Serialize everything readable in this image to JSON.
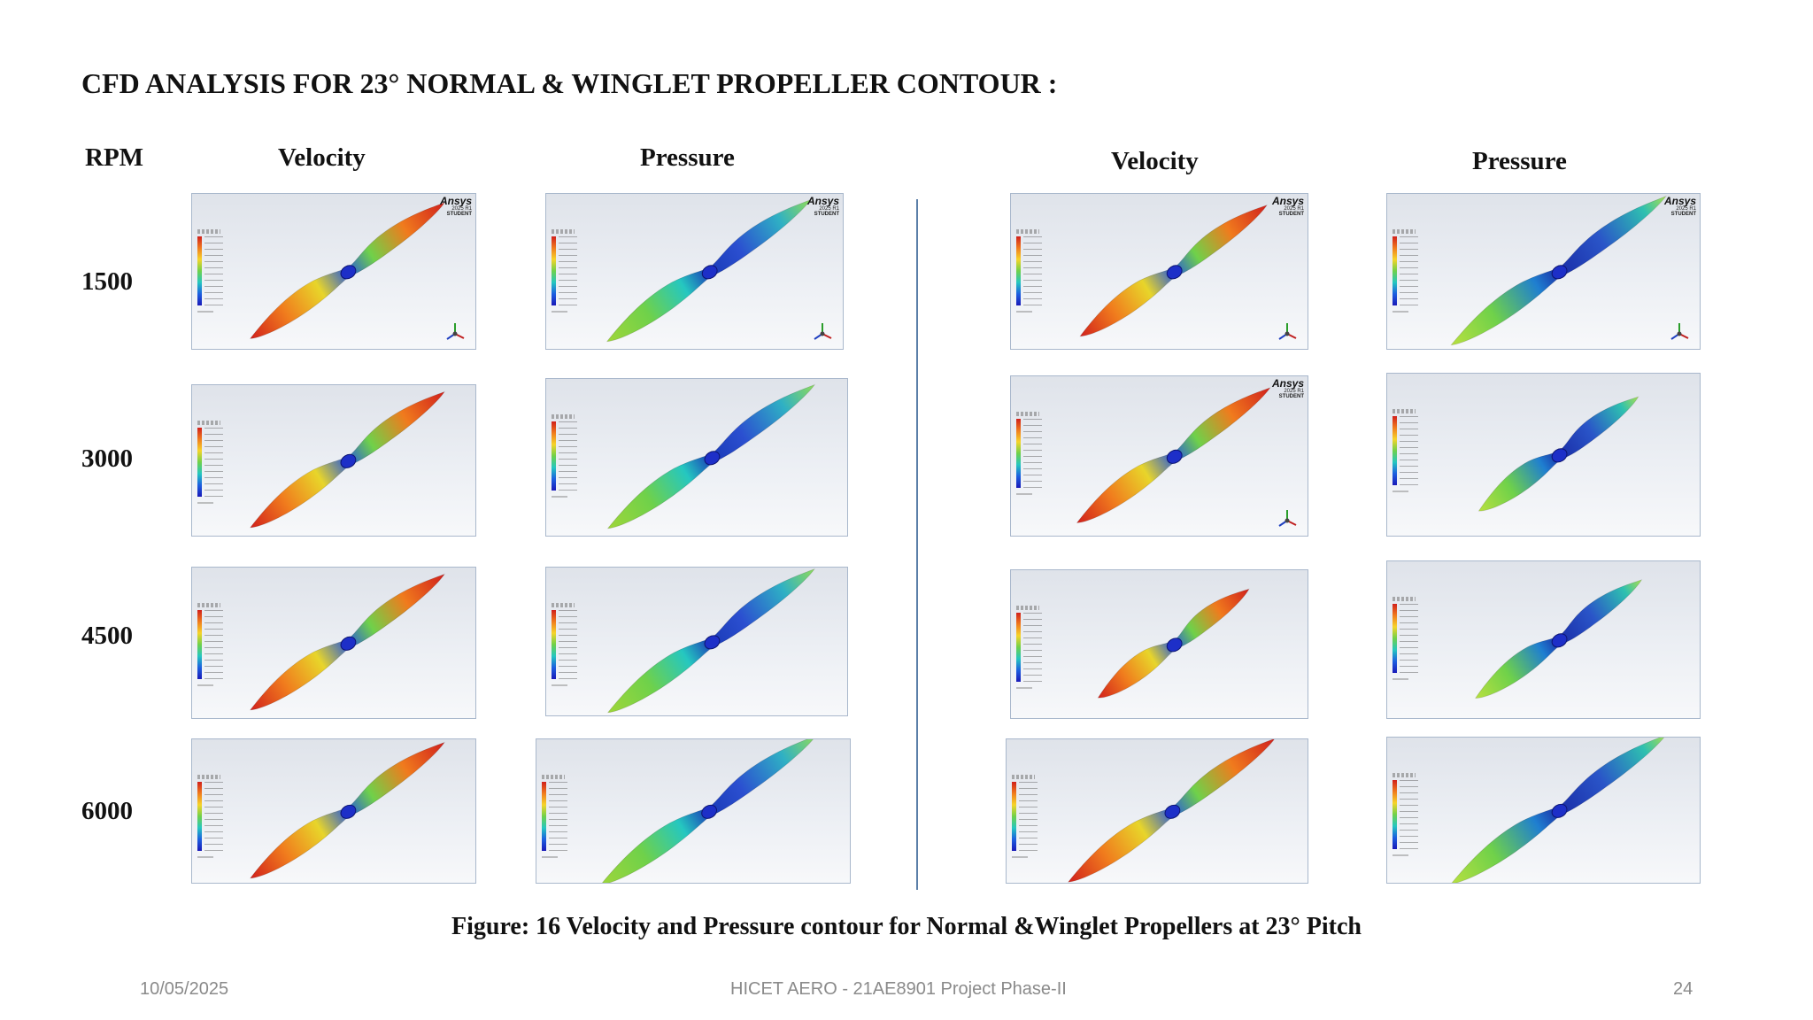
{
  "title": "CFD ANALYSIS FOR 23° NORMAL & WINGLET PROPELLER CONTOUR :",
  "columns": {
    "rpm": "RPM",
    "normal_velocity": "Velocity",
    "normal_pressure": "Pressure",
    "winglet_velocity": "Velocity",
    "winglet_pressure": "Pressure"
  },
  "rows": [
    {
      "rpm": "1500"
    },
    {
      "rpm": "3000"
    },
    {
      "rpm": "4500"
    },
    {
      "rpm": "6000"
    }
  ],
  "panel_badge": {
    "logo": "Ansys",
    "version": "2025 R1",
    "edition": "STUDENT"
  },
  "colormap": {
    "high": "#d1201c",
    "mid_high": "#f07b1d",
    "mid": "#6fd14a",
    "mid_low": "#25c7c0",
    "low": "#1a1ab8"
  },
  "caption": "Figure: 16 Velocity and Pressure contour for Normal &Winglet Propellers at 23° Pitch",
  "footer": {
    "date": "10/05/2025",
    "center": "HICET AERO - 21AE8901 Project Phase-II",
    "page": "24"
  }
}
